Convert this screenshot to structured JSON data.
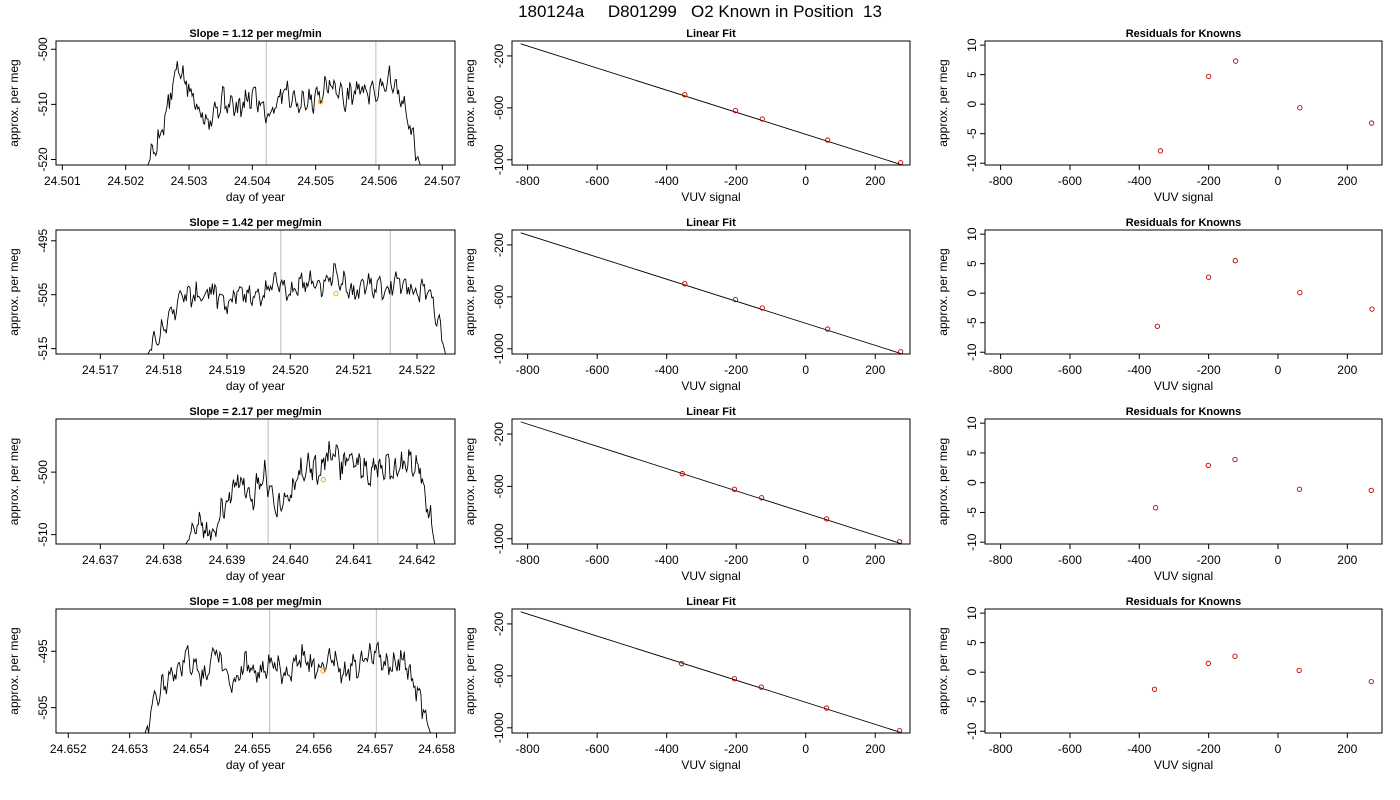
{
  "title": "180124a     D801299   O2 Known in Position  13",
  "chart_data": [
    {
      "type": "line",
      "title": "Slope =  1.12  per meg/min",
      "xlabel": "day of year",
      "ylabel": "approx. per meg",
      "xlim": [
        24.5009,
        24.5072
      ],
      "ylim": [
        -521,
        -498.5
      ],
      "xticks": [
        "24.501",
        "24.502",
        "24.503",
        "24.504",
        "24.505",
        "24.506",
        "24.507"
      ],
      "yticks": [
        "-500",
        "-510",
        "-520"
      ],
      "vlines": [
        24.50422,
        24.50595
      ],
      "marker": {
        "x": 24.50508,
        "y": -509.5,
        "color": "#ffa500"
      },
      "series": [
        {
          "x_start": 24.50235,
          "x_end": 24.50665,
          "anchors": [
            -521,
            -514,
            -503,
            -509,
            -513,
            -509,
            -511,
            -508,
            -512,
            -507,
            -510,
            -509,
            -506,
            -509,
            -507,
            -508,
            -505,
            -511,
            -521
          ]
        }
      ]
    },
    {
      "type": "scatter",
      "title": "Linear Fit",
      "xlabel": "VUV signal",
      "ylabel": "approx. per meg",
      "xlim": [
        -845,
        300
      ],
      "ylim": [
        -1040,
        -85
      ],
      "xticks": [
        "-800",
        "-600",
        "-400",
        "-200",
        "0",
        "200"
      ],
      "yticks": [
        "-200",
        "-600",
        "-1000"
      ],
      "fit_line": [
        [
          -820,
          -107
        ],
        [
          278,
          -1040
        ]
      ],
      "points": [
        {
          "x": -348,
          "y": -499,
          "color": "#ffa500"
        },
        {
          "x": -348,
          "y": -499,
          "color": "#c00000"
        },
        {
          "x": -202,
          "y": -621,
          "color": "#c00000"
        },
        {
          "x": -125,
          "y": -686,
          "color": "#c00000"
        },
        {
          "x": 63,
          "y": -848,
          "color": "#c00000"
        },
        {
          "x": 273,
          "y": -1023,
          "color": "#c00000"
        }
      ]
    },
    {
      "type": "scatter",
      "title": "Residuals for Knowns",
      "xlabel": "VUV signal",
      "ylabel": "approx. per meg",
      "xlim": [
        -845,
        300
      ],
      "ylim": [
        -10.3,
        10.7
      ],
      "xticks": [
        "-800",
        "-600",
        "-400",
        "-200",
        "0",
        "200"
      ],
      "yticks": [
        "10",
        "5",
        "0",
        "-5",
        "-10"
      ],
      "points": [
        {
          "x": -339,
          "y": -7.9,
          "color": "#c00000"
        },
        {
          "x": -200,
          "y": 4.7,
          "color": "#c00000"
        },
        {
          "x": -122,
          "y": 7.3,
          "color": "#c00000"
        },
        {
          "x": 63,
          "y": -0.6,
          "color": "#c00000"
        },
        {
          "x": 270,
          "y": -3.2,
          "color": "#c00000"
        }
      ]
    },
    {
      "type": "line",
      "title": "Slope =  1.42  per meg/min",
      "xlabel": "day of year",
      "ylabel": "approx. per meg",
      "xlim": [
        24.5163,
        24.5226
      ],
      "ylim": [
        -516,
        -493
      ],
      "xticks": [
        "24.517",
        "24.518",
        "24.519",
        "24.520",
        "24.521",
        "24.522"
      ],
      "yticks": [
        "-495",
        "-505",
        "-515"
      ],
      "vlines": [
        24.51985,
        24.52158
      ],
      "marker": {
        "x": 24.52072,
        "y": -504.8,
        "color": "#ffa500"
      },
      "series": [
        {
          "x_start": 24.51775,
          "x_end": 24.52245,
          "anchors": [
            -516,
            -511,
            -506,
            -505,
            -504,
            -507,
            -504,
            -506,
            -503,
            -505,
            -502,
            -504,
            -501,
            -505,
            -503,
            -504,
            -502,
            -505,
            -504,
            -516
          ]
        }
      ]
    },
    {
      "type": "scatter",
      "title": "Linear Fit",
      "xlabel": "VUV signal",
      "ylabel": "approx. per meg",
      "xlim": [
        -845,
        300
      ],
      "ylim": [
        -1040,
        -85
      ],
      "xticks": [
        "-800",
        "-600",
        "-400",
        "-200",
        "0",
        "200"
      ],
      "yticks": [
        "-200",
        "-600",
        "-1000"
      ],
      "fit_line": [
        [
          -820,
          -107
        ],
        [
          278,
          -1040
        ]
      ],
      "points": [
        {
          "x": -348,
          "y": -499,
          "color": "#ffa500"
        },
        {
          "x": -348,
          "y": -499,
          "color": "#c00000"
        },
        {
          "x": -202,
          "y": -621,
          "color": "#c00000"
        },
        {
          "x": -125,
          "y": -686,
          "color": "#c00000"
        },
        {
          "x": 63,
          "y": -848,
          "color": "#c00000"
        },
        {
          "x": 273,
          "y": -1023,
          "color": "#c00000"
        }
      ]
    },
    {
      "type": "scatter",
      "title": "Residuals for Knowns",
      "xlabel": "VUV signal",
      "ylabel": "approx. per meg",
      "xlim": [
        -845,
        300
      ],
      "ylim": [
        -10.3,
        10.7
      ],
      "xticks": [
        "-800",
        "-600",
        "-400",
        "-200",
        "0",
        "200"
      ],
      "yticks": [
        "10",
        "5",
        "0",
        "-5",
        "-10"
      ],
      "points": [
        {
          "x": -348,
          "y": -5.6,
          "color": "#c00000"
        },
        {
          "x": -200,
          "y": 2.7,
          "color": "#c00000"
        },
        {
          "x": -123,
          "y": 5.5,
          "color": "#c00000"
        },
        {
          "x": 63,
          "y": 0.1,
          "color": "#c00000"
        },
        {
          "x": 271,
          "y": -2.7,
          "color": "#c00000"
        }
      ]
    },
    {
      "type": "line",
      "title": "Slope =  2.17  per meg/min",
      "xlabel": "day of year",
      "ylabel": "approx. per meg",
      "xlim": [
        24.6363,
        24.6426
      ],
      "ylim": [
        -511.5,
        -491.5
      ],
      "xticks": [
        "24.637",
        "24.638",
        "24.639",
        "24.640",
        "24.641",
        "24.642"
      ],
      "yticks": [
        "-500",
        "-510"
      ],
      "vlines": [
        24.63965,
        24.64138
      ],
      "marker": {
        "x": 24.64052,
        "y": -501.2,
        "color": "#ffa500"
      },
      "series": [
        {
          "x_start": 24.63835,
          "x_end": 24.64228,
          "anchors": [
            -511.5,
            -508,
            -510,
            -505,
            -501,
            -504,
            -500,
            -506,
            -503,
            -499,
            -500,
            -497,
            -499,
            -498,
            -500,
            -499,
            -500,
            -498,
            -500,
            -511.5
          ]
        }
      ]
    },
    {
      "type": "scatter",
      "title": "Linear Fit",
      "xlabel": "VUV signal",
      "ylabel": "approx. per meg",
      "xlim": [
        -845,
        300
      ],
      "ylim": [
        -1040,
        -85
      ],
      "xticks": [
        "-800",
        "-600",
        "-400",
        "-200",
        "0",
        "200"
      ],
      "yticks": [
        "-200",
        "-600",
        "-1000"
      ],
      "fit_line": [
        [
          -820,
          -107
        ],
        [
          278,
          -1040
        ]
      ],
      "points": [
        {
          "x": -355,
          "y": -503,
          "color": "#ffa500"
        },
        {
          "x": -355,
          "y": -503,
          "color": "#c00000"
        },
        {
          "x": -205,
          "y": -622,
          "color": "#c00000"
        },
        {
          "x": -127,
          "y": -687,
          "color": "#c00000"
        },
        {
          "x": 60,
          "y": -848,
          "color": "#c00000"
        },
        {
          "x": 270,
          "y": -1023,
          "color": "#c00000"
        }
      ]
    },
    {
      "type": "scatter",
      "title": "Residuals for Knowns",
      "xlabel": "VUV signal",
      "ylabel": "approx. per meg",
      "xlim": [
        -845,
        300
      ],
      "ylim": [
        -10.3,
        10.7
      ],
      "xticks": [
        "-800",
        "-600",
        "-400",
        "-200",
        "0",
        "200"
      ],
      "yticks": [
        "10",
        "5",
        "0",
        "-5",
        "-10"
      ],
      "points": [
        {
          "x": -353,
          "y": -4.2,
          "color": "#c00000"
        },
        {
          "x": -201,
          "y": 2.9,
          "color": "#c00000"
        },
        {
          "x": -124,
          "y": 3.9,
          "color": "#c00000"
        },
        {
          "x": 62,
          "y": -1.1,
          "color": "#c00000"
        },
        {
          "x": 269,
          "y": -1.3,
          "color": "#c00000"
        }
      ]
    },
    {
      "type": "line",
      "title": "Slope =  1.08  per meg/min",
      "xlabel": "day of year",
      "ylabel": "approx. per meg",
      "xlim": [
        24.6518,
        24.6583
      ],
      "ylim": [
        -509.5,
        -487.5
      ],
      "xticks": [
        "24.652",
        "24.653",
        "24.654",
        "24.655",
        "24.656",
        "24.657",
        "24.658"
      ],
      "yticks": [
        "-495",
        "-505"
      ],
      "vlines": [
        24.65528,
        24.65702
      ],
      "marker": {
        "x": 24.65615,
        "y": -498.5,
        "color": "#ffa500"
      },
      "series": [
        {
          "x_start": 24.65325,
          "x_end": 24.6579,
          "anchors": [
            -509.5,
            -502,
            -499,
            -496,
            -500,
            -495,
            -501,
            -497,
            -499,
            -497,
            -500,
            -496,
            -498,
            -496,
            -499,
            -497,
            -495,
            -498,
            -496,
            -502,
            -509.5
          ]
        }
      ]
    },
    {
      "type": "scatter",
      "title": "Linear Fit",
      "xlabel": "VUV signal",
      "ylabel": "approx. per meg",
      "xlim": [
        -845,
        300
      ],
      "ylim": [
        -1040,
        -85
      ],
      "xticks": [
        "-800",
        "-600",
        "-400",
        "-200",
        "0",
        "200"
      ],
      "yticks": [
        "-200",
        "-600",
        "-1000"
      ],
      "fit_line": [
        [
          -820,
          -107
        ],
        [
          278,
          -1040
        ]
      ],
      "points": [
        {
          "x": -357,
          "y": -506,
          "color": "#ffa500"
        },
        {
          "x": -357,
          "y": -506,
          "color": "#c00000"
        },
        {
          "x": -205,
          "y": -622,
          "color": "#c00000"
        },
        {
          "x": -128,
          "y": -687,
          "color": "#c00000"
        },
        {
          "x": 60,
          "y": -848,
          "color": "#c00000"
        },
        {
          "x": 270,
          "y": -1023,
          "color": "#c00000"
        }
      ]
    },
    {
      "type": "scatter",
      "title": "Residuals for Knowns",
      "xlabel": "VUV signal",
      "ylabel": "approx. per meg",
      "xlim": [
        -845,
        300
      ],
      "ylim": [
        -10.3,
        10.7
      ],
      "xticks": [
        "-800",
        "-600",
        "-400",
        "-200",
        "0",
        "200"
      ],
      "yticks": [
        "10",
        "5",
        "0",
        "-5",
        "-10"
      ],
      "points": [
        {
          "x": -356,
          "y": -2.9,
          "color": "#c00000"
        },
        {
          "x": -201,
          "y": 1.5,
          "color": "#c00000"
        },
        {
          "x": -124,
          "y": 2.7,
          "color": "#c00000"
        },
        {
          "x": 61,
          "y": 0.3,
          "color": "#c00000"
        },
        {
          "x": 269,
          "y": -1.6,
          "color": "#c00000"
        }
      ]
    }
  ]
}
